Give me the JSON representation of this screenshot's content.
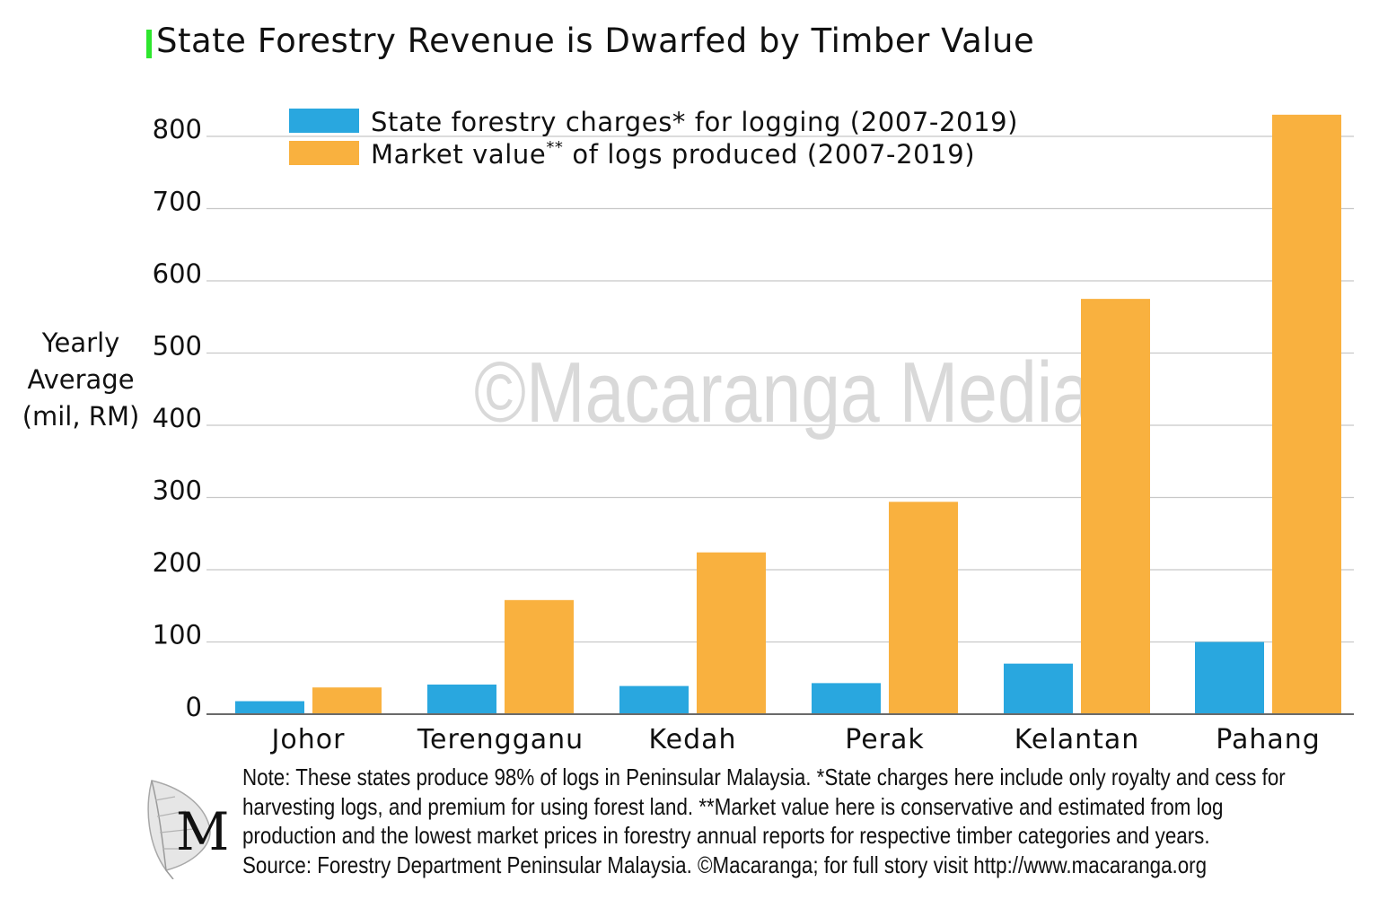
{
  "colors": {
    "blue": "#29a7df",
    "orange": "#f9b13f",
    "title_accent": "#2ee62e",
    "grid": "#c8c8c8",
    "watermark": "#d9d9d9"
  },
  "watermark": "©Macaranga Media",
  "note": {
    "lines": [
      "Note: These states produce 98% of logs in Peninsular Malaysia. *State charges here include only royalty and cess for",
      "harvesting logs, and premium for using forest land.  **Market value here is conservative and estimated from log",
      "production and the lowest market prices in forestry annual reports for respective timber categories and years.",
      "Source: Forestry Department Peninsular Malaysia. ©Macaranga; for full story visit http://www.macaranga.org"
    ]
  },
  "logo": {
    "letter": "M",
    "icon": "leaf-icon"
  },
  "chart_data": {
    "type": "bar",
    "title": "State Forestry Revenue is Dwarfed by Timber Value",
    "ylabel_lines": [
      "Yearly",
      "Average",
      "(mil, RM)"
    ],
    "xlabel": "",
    "categories": [
      "Johor",
      "Terengganu",
      "Kedah",
      "Perak",
      "Kelantan",
      "Pahang"
    ],
    "yticks": [
      0,
      100,
      200,
      300,
      400,
      500,
      600,
      700,
      800
    ],
    "ylim": [
      0,
      830
    ],
    "grid": true,
    "legend_position": "top",
    "series": [
      {
        "name": "State forestry charges* for logging (2007-2019)",
        "color": "#29a7df",
        "values": [
          18,
          41,
          39,
          43,
          70,
          100
        ]
      },
      {
        "name": "Market value** of logs produced (2007-2019)",
        "color": "#f9b13f",
        "values": [
          37,
          158,
          224,
          294,
          575,
          830
        ]
      }
    ],
    "legend_entries": [
      {
        "pre": "State forestry charges* for logging (2007-2019)",
        "sup": "",
        "post": ""
      },
      {
        "pre": "Market value",
        "sup": "**",
        "post": " of logs produced (2007-2019)"
      }
    ]
  }
}
